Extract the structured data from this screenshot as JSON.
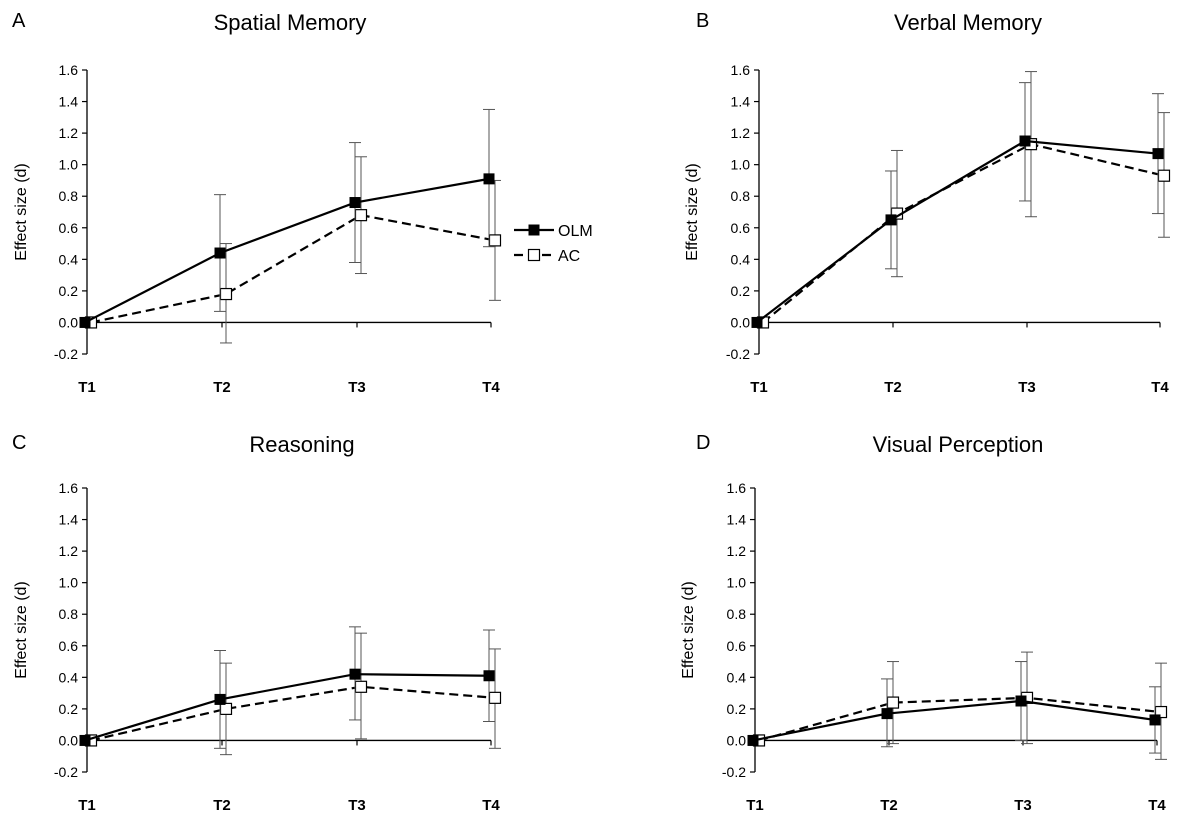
{
  "chart_data": [
    {
      "type": "line",
      "panel": "A",
      "title": "Spatial Memory",
      "ylabel": "Effect size (d)",
      "xlabel": "",
      "categories": [
        "T1",
        "T2",
        "T3",
        "T4"
      ],
      "ylim": [
        -0.2,
        1.6
      ],
      "yticks": [
        "-0.2",
        "0.0",
        "0.2",
        "0.4",
        "0.6",
        "0.8",
        "1.0",
        "1.2",
        "1.4",
        "1.6"
      ],
      "grid": false,
      "legend": "right",
      "series": [
        {
          "name": "OLM",
          "style": "solid",
          "marker": "filled-square",
          "values": [
            0.0,
            0.44,
            0.76,
            0.91
          ],
          "err_low": [
            0.0,
            0.07,
            0.38,
            0.48
          ],
          "err_high": [
            0.0,
            0.81,
            1.14,
            1.35
          ]
        },
        {
          "name": "AC",
          "style": "dashed",
          "marker": "open-square",
          "values": [
            0.0,
            0.18,
            0.68,
            0.52
          ],
          "err_low": [
            0.0,
            -0.13,
            0.31,
            0.14
          ],
          "err_high": [
            0.0,
            0.5,
            1.05,
            0.9
          ]
        }
      ]
    },
    {
      "type": "line",
      "panel": "B",
      "title": "Verbal Memory",
      "ylabel": "Effect size (d)",
      "xlabel": "",
      "categories": [
        "T1",
        "T2",
        "T3",
        "T4"
      ],
      "ylim": [
        -0.2,
        1.6
      ],
      "yticks": [
        "-0.2",
        "0.0",
        "0.2",
        "0.4",
        "0.6",
        "0.8",
        "1.0",
        "1.2",
        "1.4",
        "1.6"
      ],
      "grid": false,
      "series": [
        {
          "name": "OLM",
          "style": "solid",
          "marker": "filled-square",
          "values": [
            0.0,
            0.65,
            1.15,
            1.07
          ],
          "err_low": [
            0.0,
            0.34,
            0.77,
            0.69
          ],
          "err_high": [
            0.0,
            0.96,
            1.52,
            1.45
          ]
        },
        {
          "name": "AC",
          "style": "dashed",
          "marker": "open-square",
          "values": [
            0.0,
            0.69,
            1.13,
            0.93
          ],
          "err_low": [
            0.0,
            0.29,
            0.67,
            0.54
          ],
          "err_high": [
            0.0,
            1.09,
            1.59,
            1.33
          ]
        }
      ]
    },
    {
      "type": "line",
      "panel": "C",
      "title": "Reasoning",
      "ylabel": "Effect size (d)",
      "xlabel": "",
      "categories": [
        "T1",
        "T2",
        "T3",
        "T4"
      ],
      "ylim": [
        -0.2,
        1.6
      ],
      "yticks": [
        "-0.2",
        "0.0",
        "0.2",
        "0.4",
        "0.6",
        "0.8",
        "1.0",
        "1.2",
        "1.4",
        "1.6"
      ],
      "grid": false,
      "series": [
        {
          "name": "OLM",
          "style": "solid",
          "marker": "filled-square",
          "values": [
            0.0,
            0.26,
            0.42,
            0.41
          ],
          "err_low": [
            0.0,
            -0.05,
            0.13,
            0.12
          ],
          "err_high": [
            0.0,
            0.57,
            0.72,
            0.7
          ]
        },
        {
          "name": "AC",
          "style": "dashed",
          "marker": "open-square",
          "values": [
            0.0,
            0.2,
            0.34,
            0.27
          ],
          "err_low": [
            0.0,
            -0.09,
            0.01,
            -0.05
          ],
          "err_high": [
            0.0,
            0.49,
            0.68,
            0.58
          ]
        }
      ]
    },
    {
      "type": "line",
      "panel": "D",
      "title": "Visual Perception",
      "ylabel": "Effect size (d)",
      "xlabel": "",
      "categories": [
        "T1",
        "T2",
        "T3",
        "T4"
      ],
      "ylim": [
        -0.2,
        1.6
      ],
      "yticks": [
        "-0.2",
        "0.0",
        "0.2",
        "0.4",
        "0.6",
        "0.8",
        "1.0",
        "1.2",
        "1.4",
        "1.6"
      ],
      "grid": false,
      "series": [
        {
          "name": "OLM",
          "style": "solid",
          "marker": "filled-square",
          "values": [
            0.0,
            0.17,
            0.25,
            0.13
          ],
          "err_low": [
            0.0,
            -0.04,
            0.0,
            -0.08
          ],
          "err_high": [
            0.0,
            0.39,
            0.5,
            0.34
          ]
        },
        {
          "name": "AC",
          "style": "dashed",
          "marker": "open-square",
          "values": [
            0.0,
            0.24,
            0.27,
            0.18
          ],
          "err_low": [
            0.0,
            -0.02,
            -0.02,
            -0.12
          ],
          "err_high": [
            0.0,
            0.5,
            0.56,
            0.49
          ]
        }
      ]
    }
  ],
  "legend": {
    "items": [
      {
        "name": "OLM",
        "style": "solid",
        "marker": "filled-square"
      },
      {
        "name": "AC",
        "style": "dashed",
        "marker": "open-square"
      }
    ]
  },
  "colors": {
    "line": "#000000",
    "errorbar": "#555555",
    "marker_fill_open": "#ffffff"
  }
}
